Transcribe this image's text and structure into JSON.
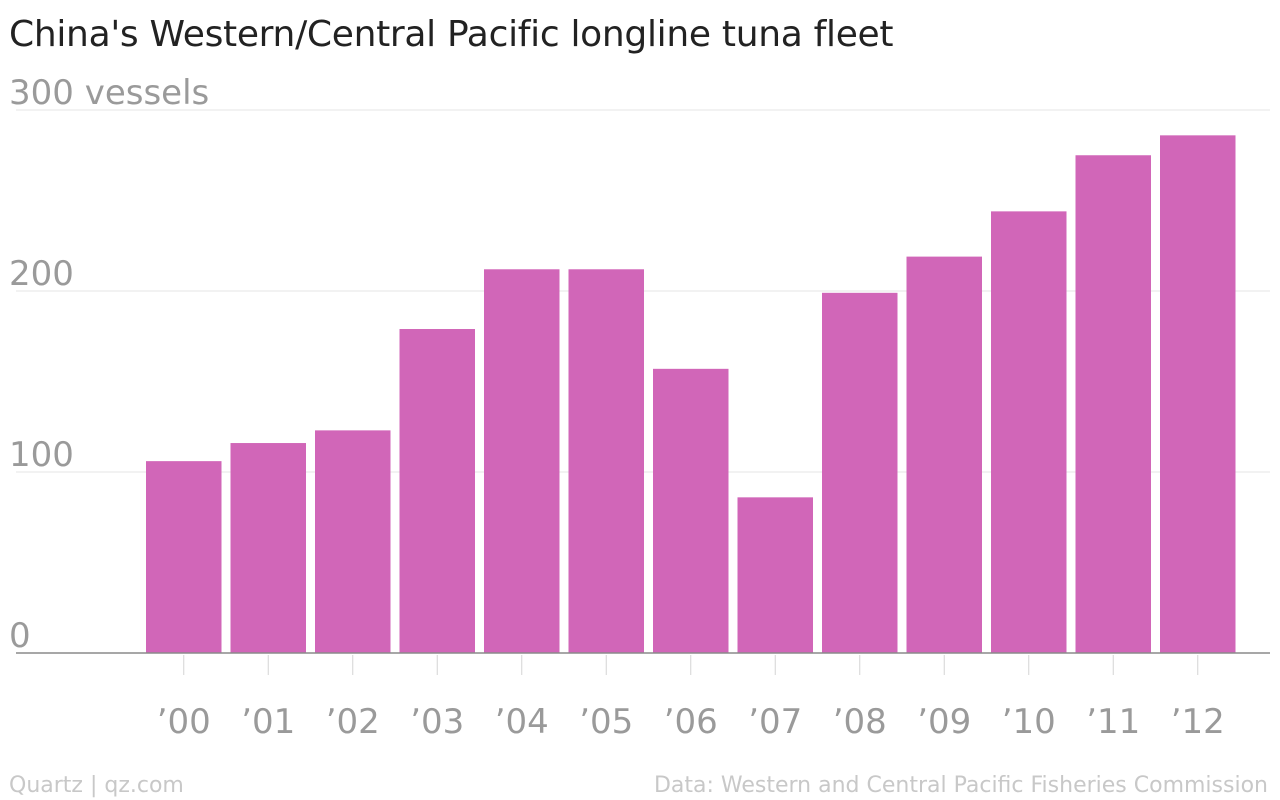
{
  "title": "China's Western/Central Pacific longline tuna fleet",
  "footer": {
    "credit": "Quartz | qz.com",
    "source": "Data: Western and Central Pacific Fisheries Commission"
  },
  "colors": {
    "bar": "#d166b8",
    "title": "#222222",
    "axis_text": "#9a9a9a",
    "footer_text": "#c8c8c8",
    "grid": "#e6e6e6",
    "baseline": "#8a8a8a"
  },
  "chart_data": {
    "type": "bar",
    "title": "China's Western/Central Pacific longline tuna fleet",
    "xlabel": "",
    "ylabel": "",
    "y_ticks": [
      0,
      100,
      200,
      300
    ],
    "y_tick_labels": [
      "0",
      "100",
      "200",
      "300 vessels"
    ],
    "ylim": [
      0,
      300
    ],
    "grid": true,
    "legend": "none",
    "categories": [
      "’00",
      "’01",
      "’02",
      "’03",
      "’04",
      "’05",
      "’06",
      "’07",
      "’08",
      "’09",
      "’10",
      "’11",
      "’12"
    ],
    "values": [
      106,
      116,
      123,
      179,
      212,
      212,
      157,
      86,
      199,
      219,
      244,
      275,
      286
    ]
  }
}
